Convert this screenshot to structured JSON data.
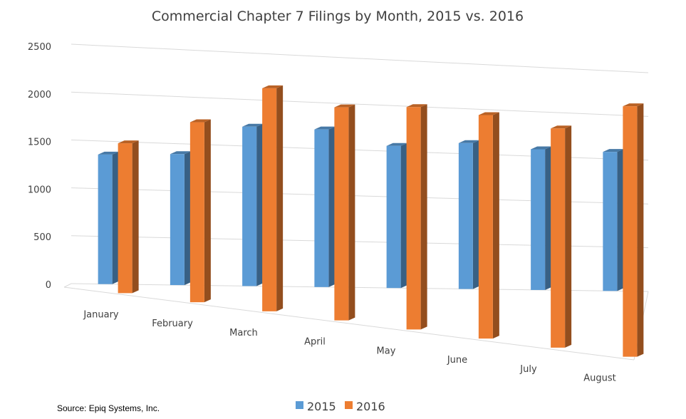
{
  "chart_data": {
    "type": "bar",
    "title": "Commercial Chapter 7 Filings by Month, 2015 vs. 2016",
    "categories": [
      "January",
      "February",
      "March",
      "April",
      "May",
      "June",
      "July",
      "August"
    ],
    "series": [
      {
        "name": "2015",
        "values": [
          1360,
          1390,
          1710,
          1710,
          1560,
          1620,
          1580,
          1580
        ],
        "color": "#5b9bd5"
      },
      {
        "name": "2016",
        "values": [
          1530,
          1810,
          2210,
          2080,
          2140,
          2120,
          2050,
          2310
        ],
        "color": "#ed7d31"
      }
    ],
    "y_ticks": [
      "0",
      "500",
      "1000",
      "1500",
      "2000",
      "2500"
    ],
    "ylim": [
      0,
      2500
    ],
    "grid": true,
    "legend_position": "bottom",
    "source": "Source: Epiq Systems, Inc."
  }
}
